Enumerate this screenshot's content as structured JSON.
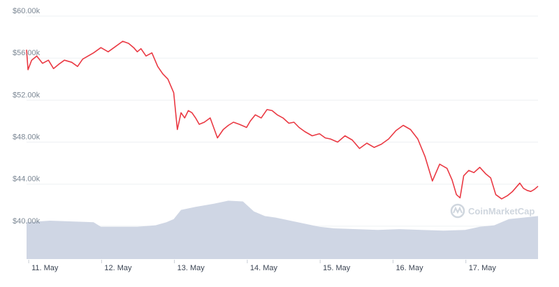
{
  "chart_data": {
    "type": "line",
    "title": "",
    "xlabel": "",
    "ylabel": "",
    "ylim": [
      36800,
      61000
    ],
    "y_ticks": [
      40000,
      44000,
      48000,
      52000,
      56000,
      60000
    ],
    "y_tick_labels": [
      "$40.00k",
      "$44.00k",
      "$48.00k",
      "$52.00k",
      "$56.00k",
      "$60.00k"
    ],
    "x_ticks": [
      0,
      1,
      2,
      3,
      4,
      5,
      6
    ],
    "x_tick_labels": [
      "11. May",
      "12. May",
      "13. May",
      "14. May",
      "15. May",
      "16. May",
      "17. May"
    ],
    "xlim": [
      -0.02,
      7.0
    ],
    "grid": true,
    "series": [
      {
        "type": "line",
        "color": "#ea3943",
        "x": [
          -0.02,
          0.0,
          0.05,
          0.12,
          0.2,
          0.28,
          0.35,
          0.42,
          0.5,
          0.6,
          0.68,
          0.75,
          0.8,
          0.9,
          1.0,
          1.1,
          1.2,
          1.3,
          1.38,
          1.45,
          1.5,
          1.55,
          1.62,
          1.7,
          1.78,
          1.85,
          1.92,
          2.0,
          2.05,
          2.1,
          2.15,
          2.2,
          2.25,
          2.3,
          2.35,
          2.42,
          2.5,
          2.6,
          2.68,
          2.75,
          2.82,
          2.9,
          3.0,
          3.05,
          3.12,
          3.2,
          3.28,
          3.35,
          3.42,
          3.5,
          3.58,
          3.65,
          3.72,
          3.8,
          3.9,
          4.0,
          4.08,
          4.15,
          4.25,
          4.35,
          4.45,
          4.55,
          4.65,
          4.75,
          4.85,
          4.95,
          5.05,
          5.15,
          5.25,
          5.35,
          5.45,
          5.55,
          5.65,
          5.75,
          5.82,
          5.88,
          5.93,
          5.98,
          6.05,
          6.12,
          6.2,
          6.28,
          6.35,
          6.42,
          6.5,
          6.58,
          6.65,
          6.7,
          6.75,
          6.8,
          6.85,
          6.9,
          6.95,
          7.0
        ],
        "y": [
          56800,
          54900,
          55800,
          56200,
          55500,
          55800,
          55000,
          55400,
          55800,
          55600,
          55200,
          55900,
          56100,
          56500,
          57000,
          56600,
          57100,
          57600,
          57400,
          57000,
          56600,
          56900,
          56200,
          56500,
          55200,
          54500,
          54000,
          52700,
          49200,
          50800,
          50300,
          51000,
          50800,
          50300,
          49700,
          49900,
          50300,
          48400,
          49200,
          49600,
          49900,
          49700,
          49400,
          50000,
          50600,
          50300,
          51100,
          51000,
          50600,
          50300,
          49800,
          49900,
          49400,
          49000,
          48600,
          48800,
          48400,
          48300,
          48000,
          48600,
          48200,
          47400,
          47900,
          47500,
          47800,
          48300,
          49100,
          49600,
          49200,
          48300,
          46600,
          44300,
          45900,
          45500,
          44400,
          43000,
          42700,
          44800,
          45300,
          45100,
          45600,
          45000,
          44600,
          43000,
          42600,
          42900,
          43300,
          43700,
          44100,
          43600,
          43400,
          43300,
          43500,
          43800
        ]
      },
      {
        "type": "area",
        "name": "volume",
        "color": "#cfd6e4",
        "x": [
          -0.02,
          0.3,
          0.6,
          0.9,
          1.0,
          1.2,
          1.5,
          1.75,
          1.9,
          2.0,
          2.1,
          2.3,
          2.55,
          2.75,
          2.95,
          3.1,
          3.25,
          3.4,
          3.6,
          3.8,
          4.0,
          4.2,
          4.5,
          4.8,
          5.1,
          5.4,
          5.7,
          6.0,
          6.2,
          6.4,
          6.6,
          6.8,
          7.0
        ],
        "y": [
          0.48,
          0.5,
          0.49,
          0.48,
          0.42,
          0.42,
          0.42,
          0.44,
          0.48,
          0.52,
          0.64,
          0.68,
          0.72,
          0.76,
          0.75,
          0.62,
          0.56,
          0.54,
          0.5,
          0.46,
          0.42,
          0.4,
          0.39,
          0.38,
          0.39,
          0.38,
          0.37,
          0.38,
          0.42,
          0.44,
          0.52,
          0.54,
          0.56
        ]
      }
    ],
    "watermark": "CoinMarketCap"
  }
}
